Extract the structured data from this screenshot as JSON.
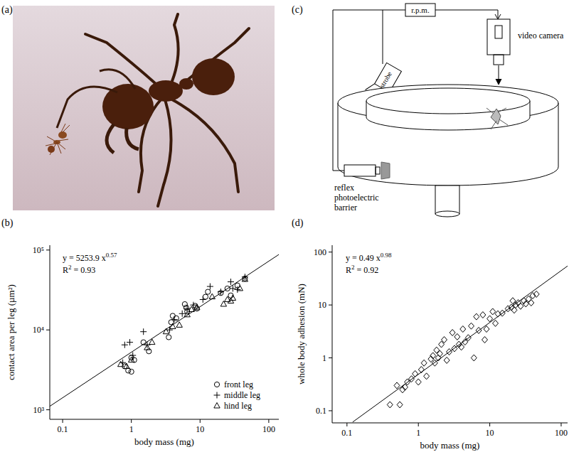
{
  "chart_data": [
    {
      "type": "scatter",
      "title": "(b)",
      "xlabel": "body mass (mg)",
      "ylabel": "contact area per leg (µm²)",
      "log": true,
      "xlim": [
        0.065,
        140
      ],
      "ylim": [
        760,
        115000
      ],
      "xticks": [
        0.1,
        1,
        10,
        100
      ],
      "yticks": [
        {
          "value": 1000,
          "label": "10³"
        },
        {
          "value": 10000,
          "label": "10⁴"
        },
        {
          "value": 100000,
          "label": "10⁵"
        }
      ],
      "legend": "lower right",
      "annotations": [
        [
          "y = 5253.9 x",
          "0.57"
        ],
        [
          "R",
          "2",
          " = 0.93"
        ]
      ],
      "series": [
        {
          "name": "front leg",
          "type": "scatter",
          "marker": "circle",
          "color": "#000000",
          "x": [
            0.8,
            0.9,
            1.0,
            1.1,
            1.0,
            1.5,
            1.8,
            3.5,
            3.8,
            4.0,
            4.5,
            6.0,
            6.3,
            6.5,
            8.5,
            9,
            12,
            13,
            20,
            25,
            28,
            35,
            45
          ],
          "values": [
            3500,
            3100,
            3000,
            4200,
            4500,
            7000,
            5400,
            8100,
            12500,
            15000,
            14000,
            21000,
            19000,
            17000,
            20000,
            18500,
            26000,
            30000,
            29000,
            33000,
            27000,
            36000,
            44000
          ]
        },
        {
          "name": "middle leg",
          "type": "scatter",
          "marker": "plus",
          "color": "#000000",
          "x": [
            0.75,
            0.8,
            0.95,
            1.05,
            1.5,
            1.7,
            3.6,
            4.2,
            5.5,
            6.5,
            8,
            11,
            14,
            20,
            28,
            30,
            35,
            45
          ],
          "values": [
            3900,
            6500,
            7000,
            4800,
            9500,
            6500,
            10000,
            13500,
            16000,
            18500,
            20500,
            24000,
            35000,
            30000,
            40000,
            33000,
            32000,
            46000
          ]
        },
        {
          "name": "hind leg",
          "type": "scatter",
          "marker": "triangle",
          "color": "#000000",
          "x": [
            0.7,
            0.85,
            1.0,
            1.7,
            2.0,
            3.2,
            4.0,
            5,
            6.5,
            7.5,
            9,
            15,
            22,
            25,
            28,
            30,
            38,
            45
          ],
          "values": [
            3700,
            3500,
            4200,
            6000,
            7000,
            9500,
            11000,
            11500,
            15500,
            18000,
            19000,
            26000,
            21000,
            24000,
            23000,
            25000,
            33000,
            43000
          ]
        },
        {
          "type": "line",
          "line_style": "solid",
          "color": "#000000",
          "x": [
            0.065,
            140
          ],
          "values": [
            1107,
            87850
          ]
        }
      ]
    },
    {
      "type": "scatter",
      "title": "(d)",
      "xlabel": "body mass (mg)",
      "ylabel": "whole body adhesion (mN)",
      "log": true,
      "xlim": [
        0.062,
        123
      ],
      "ylim": [
        0.059,
        135
      ],
      "xticks": [
        0.1,
        1,
        10,
        100
      ],
      "yticks": [
        0.1,
        1,
        10,
        100
      ],
      "annotations": [
        [
          "y = 0.49 x",
          "0.98"
        ],
        [
          "R",
          "2",
          " = 0.92"
        ]
      ],
      "series": [
        {
          "type": "scatter",
          "marker": "diamond",
          "color": "#000000",
          "x": [
            0.4,
            0.5,
            0.55,
            0.6,
            0.65,
            0.7,
            0.8,
            0.9,
            1.0,
            1.1,
            1.2,
            1.3,
            1.5,
            1.6,
            1.7,
            1.8,
            1.9,
            2.0,
            2.1,
            2.3,
            2.5,
            2.7,
            3.0,
            3.2,
            3.5,
            3.7,
            4.0,
            4.2,
            4.5,
            5.0,
            5.5,
            6.0,
            6.5,
            7.0,
            8.0,
            8.5,
            9.0,
            10,
            11,
            12,
            13,
            15,
            18,
            20,
            21,
            22,
            23,
            25,
            27,
            30,
            32,
            35,
            38,
            40,
            45
          ],
          "values": [
            0.13,
            0.3,
            0.13,
            0.25,
            0.28,
            0.35,
            0.4,
            0.5,
            0.35,
            0.6,
            0.8,
            0.45,
            0.95,
            1.1,
            0.8,
            1.4,
            1.0,
            1.2,
            1.8,
            2.2,
            0.9,
            1.3,
            3.0,
            1.5,
            2.5,
            1.8,
            1.6,
            3.5,
            2.0,
            2.4,
            4.0,
            1.0,
            6.0,
            3.3,
            6.5,
            2.2,
            3.5,
            5.5,
            7.5,
            4.5,
            6.8,
            7.0,
            8.5,
            9.0,
            12,
            8,
            10,
            11,
            9.5,
            12,
            10.5,
            13,
            11,
            15,
            16
          ]
        },
        {
          "type": "line",
          "line_style": "solid",
          "color": "#000000",
          "x": [
            0.12,
            123
          ],
          "values": [
            0.061,
            54.6
          ]
        }
      ]
    }
  ],
  "figure": {
    "panel_a": {
      "label": "(a)"
    },
    "panel_c": {
      "label": "(c)",
      "rpm": "r.p.m.",
      "strobe": "strobe",
      "camera": "video camera",
      "barrier": [
        "reflex",
        "photoelectric",
        "barrier"
      ]
    }
  }
}
